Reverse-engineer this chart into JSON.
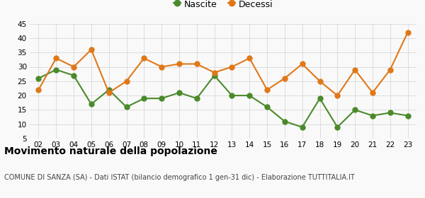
{
  "years": [
    "02",
    "03",
    "04",
    "05",
    "06",
    "07",
    "08",
    "09",
    "10",
    "11",
    "12",
    "13",
    "14",
    "15",
    "16",
    "17",
    "18",
    "19",
    "20",
    "21",
    "22",
    "23"
  ],
  "nascite": [
    26,
    29,
    27,
    17,
    22,
    16,
    19,
    19,
    21,
    19,
    27,
    20,
    20,
    16,
    11,
    9,
    19,
    9,
    15,
    13,
    14,
    13
  ],
  "decessi": [
    22,
    33,
    30,
    36,
    21,
    25,
    33,
    30,
    31,
    31,
    28,
    30,
    33,
    22,
    26,
    31,
    25,
    20,
    29,
    21,
    29,
    42
  ],
  "nascite_color": "#4a8a2a",
  "decessi_color": "#e07818",
  "ylim_min": 5,
  "ylim_max": 45,
  "yticks": [
    5,
    10,
    15,
    20,
    25,
    30,
    35,
    40,
    45
  ],
  "legend_nascite": "Nascite",
  "legend_decessi": "Decessi",
  "title": "Movimento naturale della popolazione",
  "subtitle": "COMUNE DI SANZA (SA) - Dati ISTAT (bilancio demografico 1 gen-31 dic) - Elaborazione TUTTITALIA.IT",
  "bg_color": "#f9f9f9",
  "grid_color": "#d8d8d8",
  "marker_size": 5,
  "linewidth": 1.5,
  "title_fontsize": 10,
  "subtitle_fontsize": 7,
  "tick_fontsize": 7.5,
  "legend_fontsize": 9
}
